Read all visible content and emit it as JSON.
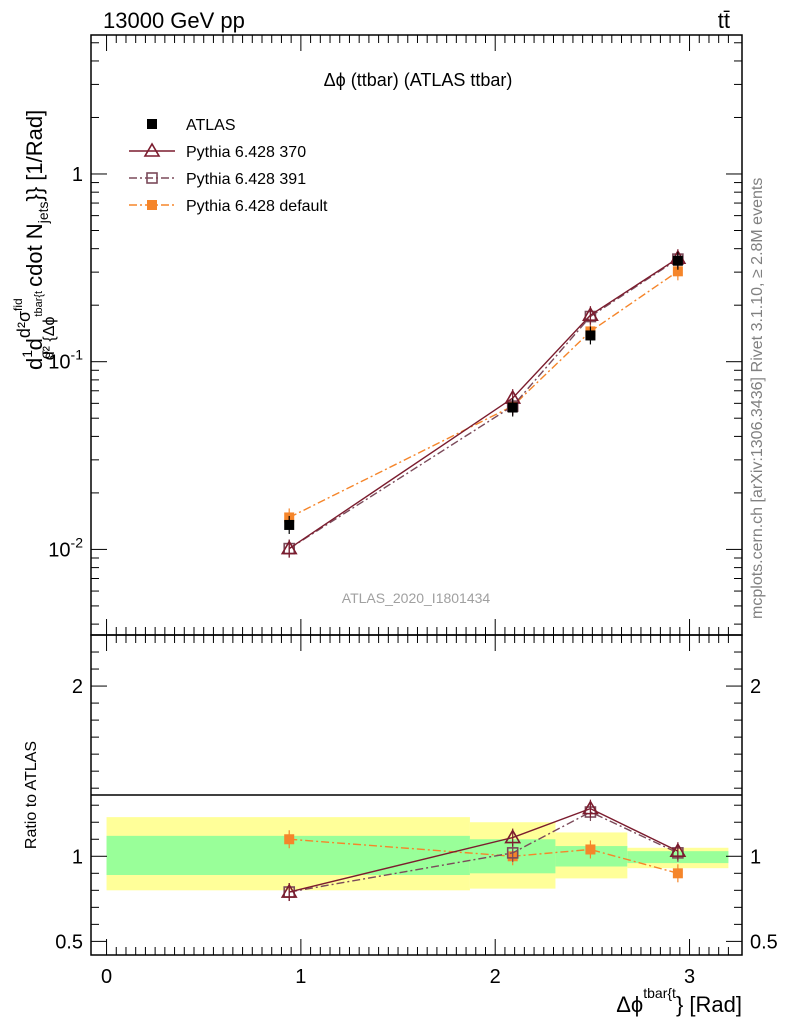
{
  "header": {
    "energy_label": "13000 GeV pp",
    "process_label": "tt̄"
  },
  "side_labels": {
    "rivet": "Rivet 3.1.10, ≥ 2.8M events",
    "source": "mcplots.cern.ch [arXiv:1306.3436]"
  },
  "chart_data": [
    {
      "type": "line",
      "title": "Δϕ (ttbar) (ATLAS ttbar)",
      "watermark": "ATLAS_2020_I1801434",
      "ylabel": "d1/σdd²σfid/d²{Δϕtbar{t}} cdot Njets}} [1/Rad]",
      "ylabel_parts": {
        "frac1_num": "1",
        "frac1_den": "σ",
        "frac2_num": "d²σ",
        "frac2_num_sup": "fid",
        "frac2_den": "d² {Δϕ",
        "frac2_den_sup": "tbar{t",
        "middle": "cdot N",
        "middle_sub": "jets",
        "tail": "}} [1/Rad]"
      },
      "y_scale": "log",
      "ylim": [
        0.0035,
        5.5
      ],
      "xlim": [
        -0.08,
        3.27
      ],
      "y_tick_labels": [
        "10^-2",
        "10^-1",
        "1"
      ],
      "legend_position": "top-left",
      "series": [
        {
          "name": "ATLAS",
          "color": "#000000",
          "marker": "filled-square",
          "x": [
            0.94,
            2.09,
            2.49,
            2.94
          ],
          "y": [
            0.0135,
            0.057,
            0.138,
            0.345
          ]
        },
        {
          "name": "Pythia 6.428 370",
          "color": "#7b1c2e",
          "marker": "open-triangle",
          "line": "solid",
          "x": [
            0.94,
            2.09,
            2.49,
            2.94
          ],
          "y": [
            0.0101,
            0.064,
            0.177,
            0.356
          ]
        },
        {
          "name": "Pythia 6.428 391",
          "color": "#7b4a5a",
          "marker": "open-square",
          "line": "dash-dot",
          "x": [
            0.94,
            2.09,
            2.49,
            2.94
          ],
          "y": [
            0.0101,
            0.058,
            0.174,
            0.352
          ]
        },
        {
          "name": "Pythia 6.428 default",
          "color": "#f5852a",
          "marker": "filled-square",
          "line": "dash-dot",
          "x": [
            0.94,
            2.09,
            2.49,
            2.94
          ],
          "y": [
            0.0148,
            0.058,
            0.145,
            0.303
          ]
        }
      ]
    },
    {
      "type": "line",
      "ylabel": "Ratio to ATLAS",
      "xlabel": "Δϕtbar{t}} [Rad]",
      "xlabel_parts": {
        "main": "Δϕ",
        "sup": "tbar{t",
        "tail": "} [Rad]"
      },
      "ylim": [
        0.42,
        2.3
      ],
      "xlim": [
        -0.08,
        3.27
      ],
      "y_tick_labels": [
        "0.5",
        "1",
        "2"
      ],
      "x_tick_labels": [
        "0",
        "1",
        "2",
        "3"
      ],
      "bands": [
        {
          "x": [
            0.0,
            1.87
          ],
          "yellow": [
            0.8,
            1.23
          ],
          "green": [
            0.89,
            1.12
          ]
        },
        {
          "x": [
            1.87,
            2.31
          ],
          "yellow": [
            0.81,
            1.2
          ],
          "green": [
            0.9,
            1.1
          ]
        },
        {
          "x": [
            2.31,
            2.68
          ],
          "yellow": [
            0.87,
            1.14
          ],
          "green": [
            0.94,
            1.06
          ]
        },
        {
          "x": [
            2.68,
            3.2
          ],
          "yellow": [
            0.93,
            1.05
          ],
          "green": [
            0.96,
            1.03
          ]
        }
      ],
      "series": [
        {
          "name": "Pythia 6.428 370",
          "color": "#7b1c2e",
          "marker": "open-triangle",
          "line": "solid",
          "x": [
            0.94,
            2.09,
            2.49,
            2.94
          ],
          "y": [
            0.79,
            1.11,
            1.28,
            1.03
          ]
        },
        {
          "name": "Pythia 6.428 391",
          "color": "#7b4a5a",
          "marker": "open-square",
          "line": "dash-dot",
          "x": [
            0.94,
            2.09,
            2.49,
            2.94
          ],
          "y": [
            0.79,
            1.02,
            1.26,
            1.02
          ]
        },
        {
          "name": "Pythia 6.428 default",
          "color": "#f5852a",
          "marker": "filled-square",
          "line": "dash-dot",
          "x": [
            0.94,
            2.09,
            2.49,
            2.94
          ],
          "y": [
            1.1,
            1.0,
            1.04,
            0.9
          ]
        }
      ]
    }
  ]
}
